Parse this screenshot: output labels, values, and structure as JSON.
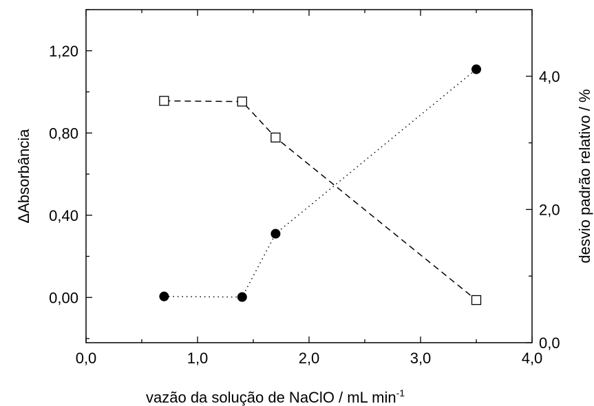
{
  "chart_data": {
    "type": "line",
    "xlabel": "vazão da solução de NaClO / mL min",
    "xlabel_superscript": "-1",
    "ylabel_left": "ΔAbsorbância",
    "ylabel_right": "desvio padrão relativo / %",
    "xlim": [
      0,
      4
    ],
    "ylim_left": [
      -0.22,
      1.4
    ],
    "ylim_right": [
      0,
      5.0
    ],
    "x_ticks": [
      "0,0",
      "1,0",
      "2,0",
      "3,0",
      "4,0"
    ],
    "y_left_ticks": [
      "0,00",
      "0,40",
      "0,80",
      "1,20"
    ],
    "y_right_ticks": [
      "0,0",
      "2,0",
      "4,0"
    ],
    "grid": false,
    "legend": "none",
    "series": [
      {
        "axis": "left",
        "marker": "filled-circle",
        "line_style": "dotted",
        "color": "#000000",
        "x": [
          0.7,
          1.4,
          1.7,
          3.5
        ],
        "y": [
          0.005,
          0.002,
          0.31,
          1.11
        ]
      },
      {
        "axis": "right",
        "marker": "open-square",
        "line_style": "dashed",
        "color": "#000000",
        "x": [
          0.7,
          1.4,
          1.7,
          3.5
        ],
        "y": [
          3.63,
          3.62,
          3.08,
          0.64
        ]
      }
    ]
  }
}
